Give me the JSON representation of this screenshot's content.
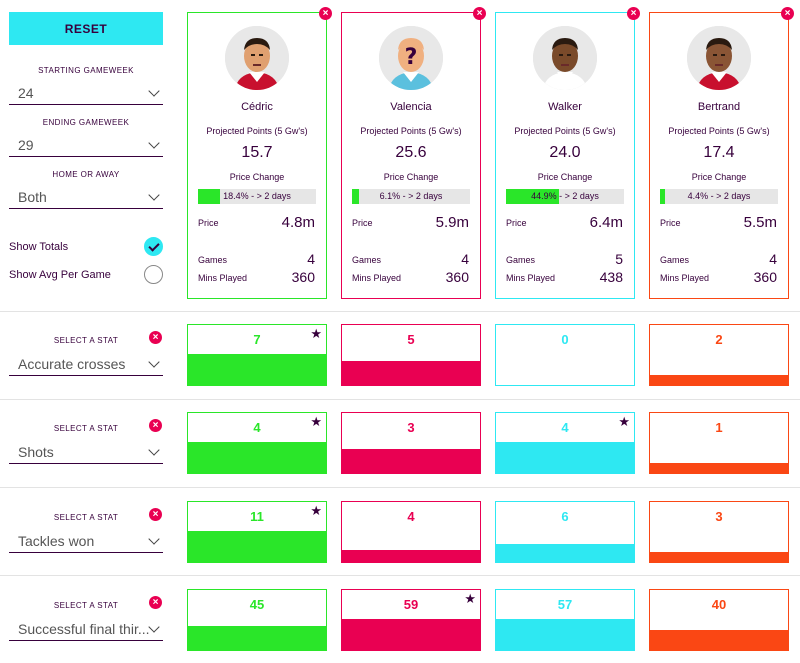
{
  "filters": {
    "reset_label": "RESET",
    "starting_label": "STARTING GAMEWEEK",
    "starting_value": "24",
    "ending_label": "ENDING GAMEWEEK",
    "ending_value": "29",
    "home_away_label": "HOME OR AWAY",
    "home_away_value": "Both",
    "show_totals_label": "Show Totals",
    "show_avg_label": "Show Avg Per Game"
  },
  "labels": {
    "projected": "Projected Points (5 Gw's)",
    "price_change": "Price Change",
    "price": "Price",
    "games": "Games",
    "mins": "Mins Played",
    "select_stat": "SELECT A STAT"
  },
  "players": [
    {
      "name": "Cédric",
      "points": "15.7",
      "change_pct": 18.4,
      "change_text": "18.4% - > 2 days",
      "price": "4.8m",
      "games": "4",
      "mins": "360",
      "color": "#2ae629"
    },
    {
      "name": "Valencia",
      "points": "25.6",
      "change_pct": 6.1,
      "change_text": "6.1% - > 2 days",
      "price": "5.9m",
      "games": "4",
      "mins": "360",
      "color": "#e90052"
    },
    {
      "name": "Walker",
      "points": "24.0",
      "change_pct": 44.9,
      "change_text": "44.9% - > 2 days",
      "price": "6.4m",
      "games": "5",
      "mins": "438",
      "color": "#2ee8f2"
    },
    {
      "name": "Bertrand",
      "points": "17.4",
      "change_pct": 4.4,
      "change_text": "4.4% - > 2 days",
      "price": "5.5m",
      "games": "4",
      "mins": "360",
      "color": "#fa4714"
    }
  ],
  "stats": [
    {
      "name": "Accurate crosses",
      "values": [
        "7",
        "5",
        "0",
        "2"
      ],
      "fill_fraction": [
        0.52,
        0.4,
        0.0,
        0.16
      ],
      "best": 0
    },
    {
      "name": "Shots",
      "values": [
        "4",
        "3",
        "4",
        "1"
      ],
      "fill_fraction": [
        0.52,
        0.4,
        0.52,
        0.16
      ],
      "best": 0,
      "best2": 2
    },
    {
      "name": "Tackles won",
      "values": [
        "11",
        "4",
        "6",
        "3"
      ],
      "fill_fraction": [
        0.52,
        0.2,
        0.3,
        0.16
      ],
      "best": 0
    },
    {
      "name": "Successful final thir...",
      "values": [
        "45",
        "59",
        "57",
        "40"
      ],
      "fill_fraction": [
        0.4,
        0.52,
        0.52,
        0.34
      ],
      "best": 1
    }
  ]
}
